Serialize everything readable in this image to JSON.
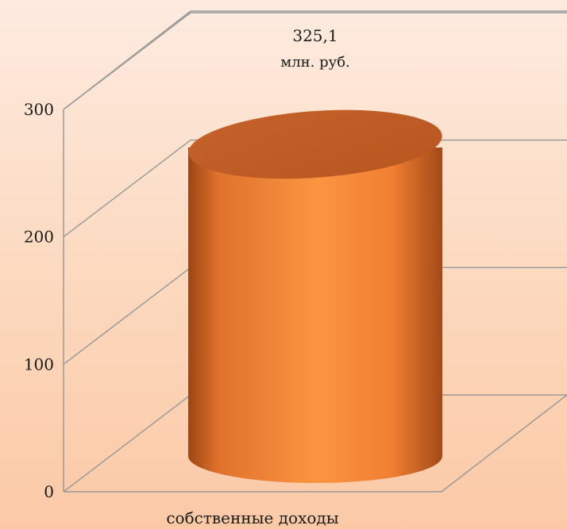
{
  "chart_data": {
    "type": "bar",
    "style": "3d-cylinder",
    "categories": [
      "собственные доходы"
    ],
    "values": [
      325.1
    ],
    "data_labels": [
      {
        "value": "325,1",
        "unit": "млн. руб."
      }
    ],
    "yticks": [
      "0",
      "100",
      "200",
      "300"
    ],
    "ylim": [
      0,
      300
    ],
    "grid": true,
    "colors": {
      "bar": "#f58a3a",
      "bar_dark": "#b4551b",
      "bar_top": "#c9632a",
      "grid": "#9a9a9a"
    }
  }
}
